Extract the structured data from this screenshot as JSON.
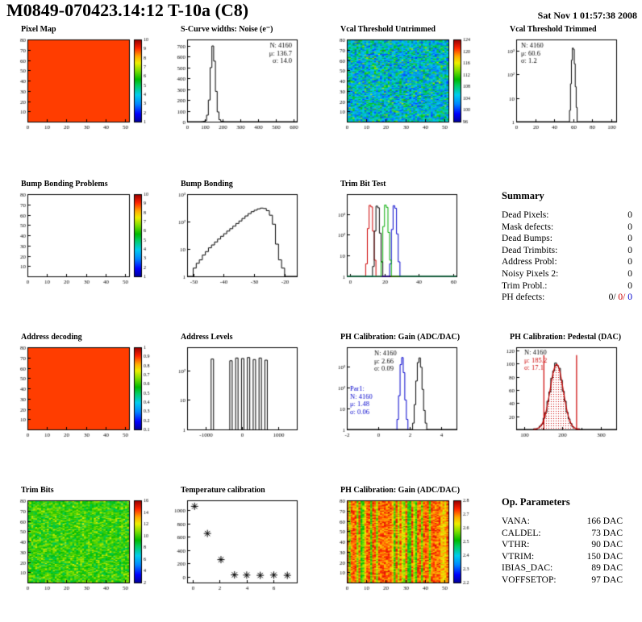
{
  "header": {
    "title": "M0849-070423.14:12 T-10a (C8)",
    "date": "Sat Nov  1 01:57:38 2008"
  },
  "colors": {
    "axis": "#000000",
    "red": "#cc0000",
    "blue": "#0000cc",
    "green": "#00aa00",
    "palette": [
      [
        0.0,
        "#000099"
      ],
      [
        0.1,
        "#0000ff"
      ],
      [
        0.22,
        "#0088ff"
      ],
      [
        0.33,
        "#00ccee"
      ],
      [
        0.44,
        "#00cc66"
      ],
      [
        0.52,
        "#00bb00"
      ],
      [
        0.62,
        "#77dd00"
      ],
      [
        0.72,
        "#eeee00"
      ],
      [
        0.8,
        "#ffaa00"
      ],
      [
        0.9,
        "#ff2200"
      ],
      [
        1.0,
        "#990000"
      ]
    ]
  },
  "chart_data": [
    {
      "id": "pixel-map",
      "type": "heatmap",
      "title": "Pixel Map",
      "x": {
        "min": 0,
        "max": 52,
        "ticks": [
          0,
          10,
          20,
          30,
          40,
          50
        ]
      },
      "y": {
        "min": 0,
        "max": 80,
        "ticks": [
          10,
          20,
          30,
          40,
          50,
          60,
          70,
          80
        ]
      },
      "noise": {
        "pattern": "flat",
        "t": 0.88
      },
      "colorbar": {
        "labels": [
          1,
          2,
          3,
          4,
          5,
          6,
          7,
          8,
          9,
          10
        ]
      }
    },
    {
      "id": "scurve-noise",
      "type": "hist",
      "title": "S-Curve widths: Noise (e⁻)",
      "x": {
        "min": 0,
        "max": 620,
        "ticks": [
          0,
          100,
          200,
          300,
          400,
          500,
          600
        ]
      },
      "y": {
        "min": 0,
        "max": 760,
        "ticks": [
          0,
          100,
          200,
          300,
          400,
          500,
          600,
          700
        ]
      },
      "series": [
        {
          "color": "#000000",
          "x0": 80,
          "dx": 10,
          "fullspan": true,
          "values": [
            1,
            3,
            10,
            60,
            200,
            500,
            700,
            560,
            280,
            90,
            18,
            3,
            1
          ]
        }
      ],
      "stats": [
        {
          "x": 160,
          "y": 16,
          "align": "right",
          "lines": [
            {
              "text": "N: 4160"
            },
            {
              "text": "μ: 136.7"
            },
            {
              "text": "σ: 14.0"
            }
          ]
        }
      ]
    },
    {
      "id": "vcal-threshold-untrimmed",
      "type": "heatmap",
      "title": "Vcal Threshold Untrimmed",
      "x": {
        "min": 0,
        "max": 52,
        "ticks": [
          0,
          10,
          20,
          30,
          40,
          50
        ]
      },
      "y": {
        "min": 0,
        "max": 80,
        "ticks": [
          10,
          20,
          30,
          40,
          50,
          60,
          70,
          80
        ]
      },
      "noise": {
        "pattern": "random",
        "range": [
          0.15,
          0.5
        ],
        "outliers": [
          0.08,
          0.5,
          0.68
        ],
        "seed": 7
      },
      "colorbar": {
        "labels": [
          96,
          100,
          104,
          108,
          112,
          116,
          120,
          124
        ]
      }
    },
    {
      "id": "vcal-threshold-trimmed",
      "type": "hist",
      "title": "Vcal Threshold Trimmed",
      "x": {
        "min": 0,
        "max": 105,
        "ticks": [
          0,
          20,
          40,
          60,
          80,
          100
        ]
      },
      "y": {
        "min": 1,
        "max": 3000,
        "log": true,
        "ticks": [
          [
            1,
            "1"
          ],
          [
            10,
            "10"
          ],
          [
            100,
            "10²"
          ],
          [
            1000,
            "10³"
          ]
        ]
      },
      "series": [
        {
          "color": "#000000",
          "x0": 55,
          "dx": 1,
          "fullspan": true,
          "values": [
            1,
            3,
            40,
            400,
            1300,
            1150,
            280,
            30,
            4,
            1
          ]
        }
      ],
      "stats": [
        {
          "x": 36,
          "y": 16,
          "lines": [
            {
              "text": "N: 4160"
            },
            {
              "text": "μ: 60.6"
            },
            {
              "text": "σ: 1.2"
            }
          ]
        }
      ]
    },
    {
      "id": "bump-bonding-problems",
      "type": "heatmap",
      "title": "Bump Bonding Problems",
      "x": {
        "min": 0,
        "max": 52,
        "ticks": [
          0,
          10,
          20,
          30,
          40,
          50
        ]
      },
      "y": {
        "min": 0,
        "max": 80,
        "ticks": [
          10,
          20,
          30,
          40,
          50,
          60,
          70,
          80
        ]
      },
      "noise": {
        "pattern": "empty"
      },
      "colorbar": {
        "labels": [
          1,
          2,
          3,
          4,
          5,
          6,
          7,
          8,
          9,
          10
        ]
      }
    },
    {
      "id": "bump-bonding",
      "type": "hist",
      "title": "Bump Bonding",
      "x": {
        "min": -52,
        "max": -16,
        "ticks": [
          -50,
          -40,
          -30,
          -20
        ]
      },
      "y": {
        "min": 1,
        "max": 1000,
        "log": true,
        "ticks": [
          [
            1,
            "1"
          ],
          [
            10,
            "10"
          ],
          [
            100,
            "10²"
          ],
          [
            1000,
            "10³"
          ]
        ]
      },
      "series": [
        {
          "color": "#000000",
          "x0": -50,
          "dx": 1,
          "fullspan": true,
          "values": [
            2,
            3,
            4,
            6,
            8,
            11,
            14,
            18,
            23,
            29,
            36,
            45,
            55,
            68,
            85,
            105,
            130,
            160,
            195,
            230,
            260,
            290,
            310,
            300,
            250,
            170,
            80,
            15,
            4,
            2
          ]
        }
      ]
    },
    {
      "id": "trim-bit-test",
      "type": "hist",
      "title": "Trim Bit Test",
      "x": {
        "min": -2,
        "max": 62,
        "ticks": [
          0,
          20,
          40,
          60
        ]
      },
      "y": {
        "min": 1,
        "max": 9000,
        "log": true,
        "ticks": [
          [
            1,
            "1"
          ],
          [
            10,
            "10"
          ],
          [
            100,
            "10²"
          ],
          [
            1000,
            "10³"
          ]
        ]
      },
      "series": [
        {
          "color": "#cc0000",
          "x0": 9,
          "dx": 1,
          "fullspan": true,
          "values": [
            4,
            200,
            2600,
            2200,
            150,
            6
          ]
        },
        {
          "color": "#000000",
          "x0": 13,
          "dx": 1,
          "fullspan": true,
          "values": [
            3,
            150,
            2400,
            2000,
            120,
            5
          ]
        },
        {
          "color": "#0000cc",
          "x0": 23,
          "dx": 1,
          "fullspan": true,
          "values": [
            4,
            180,
            2500,
            1900,
            110,
            5
          ]
        },
        {
          "color": "#00aa00",
          "x0": 18,
          "dx": 1,
          "fullspan": true,
          "values": [
            5,
            250,
            2700,
            2100,
            130,
            6
          ]
        }
      ]
    },
    {
      "id": "summary",
      "type": "table",
      "title": "Summary",
      "rows": [
        {
          "label": "Dead Pixels:",
          "value": "0"
        },
        {
          "label": "Mask defects:",
          "value": "0"
        },
        {
          "label": "Dead Bumps:",
          "value": "0"
        },
        {
          "label": "Dead Trimbits:",
          "value": "0"
        },
        {
          "label": "Address Probl:",
          "value": "0"
        },
        {
          "label": "Noisy Pixels 2:",
          "value": "0"
        },
        {
          "label": "Trim Probl.:",
          "value": "0"
        },
        {
          "label": "PH defects:",
          "value_parts": [
            {
              "text": "0/",
              "color": "#000000"
            },
            {
              "text": " 0/",
              "color": "#cc0000"
            },
            {
              "text": " 0",
              "color": "#0000cc"
            }
          ]
        }
      ]
    },
    {
      "id": "address-decoding",
      "type": "heatmap",
      "title": "Address decoding",
      "x": {
        "min": 0,
        "max": 52,
        "ticks": [
          0,
          10,
          20,
          30,
          40,
          50
        ]
      },
      "y": {
        "min": 0,
        "max": 80,
        "ticks": [
          10,
          20,
          30,
          40,
          50,
          60,
          70,
          80
        ]
      },
      "noise": {
        "pattern": "flat",
        "t": 0.88
      },
      "colorbar": {
        "labels": [
          "0.1",
          "0.2",
          "0.3",
          "0.4",
          "0.5",
          "0.6",
          "0.7",
          "0.8",
          "0.9",
          "1"
        ]
      }
    },
    {
      "id": "address-levels",
      "type": "hist",
      "title": "Address Levels",
      "x": {
        "min": -1500,
        "max": 1500,
        "ticks": [
          -1000,
          0,
          1000
        ]
      },
      "y": {
        "min": 1,
        "max": 600,
        "log": true,
        "ticks": [
          [
            1,
            "1"
          ],
          [
            10,
            "10"
          ],
          [
            100,
            "10²"
          ]
        ]
      },
      "spikes": [
        [
          -810,
          240
        ],
        [
          -300,
          210
        ],
        [
          -140,
          260
        ],
        [
          20,
          250
        ],
        [
          180,
          270
        ],
        [
          340,
          230
        ],
        [
          500,
          260
        ],
        [
          660,
          220
        ]
      ]
    },
    {
      "id": "ph-calibration-gain-hist",
      "type": "hist",
      "title": "PH Calibration: Gain (ADC/DAC)",
      "x": {
        "min": -2,
        "max": 5,
        "ticks": [
          -2,
          0,
          2,
          4
        ]
      },
      "y": {
        "min": 1,
        "max": 8000,
        "log": true,
        "ticks": [
          [
            1,
            "1"
          ],
          [
            10,
            "10"
          ],
          [
            100,
            "10²"
          ],
          [
            1000,
            "10³"
          ]
        ]
      },
      "series": [
        {
          "color": "#000000",
          "x0": 2.2,
          "dx": 0.1,
          "fullspan": true,
          "values": [
            2,
            15,
            200,
            1500,
            2500,
            900,
            80,
            8,
            2
          ]
        },
        {
          "color": "#0000cc",
          "x0": 1.2,
          "dx": 0.1,
          "values": [
            3,
            40,
            1200,
            2600,
            500,
            25,
            3
          ]
        }
      ],
      "stats": [
        {
          "x": 64,
          "y": 16,
          "lines": [
            {
              "text": "N: 4160"
            },
            {
              "text": "μ: 2.66"
            },
            {
              "text": "σ: 0.09"
            }
          ]
        },
        {
          "x": 34,
          "y": 60,
          "lines": [
            {
              "text": "Par1:",
              "color": "#0000cc"
            },
            {
              "text": "N: 4160",
              "color": "#0000cc"
            },
            {
              "text": "μ: 1.48",
              "color": "#0000cc"
            },
            {
              "text": "σ: 0.06",
              "color": "#0000cc"
            }
          ]
        }
      ]
    },
    {
      "id": "ph-calibration-pedestal",
      "type": "hist",
      "title": "PH Calibration: Pedestal (DAC)",
      "x": {
        "min": 80,
        "max": 340,
        "ticks": [
          100,
          200,
          300
        ],
        "minor": [
          150,
          250
        ]
      },
      "y": {
        "min": 0,
        "max": 125,
        "ticks": [
          20,
          40,
          60,
          80,
          100,
          120
        ]
      },
      "series": [
        {
          "color": "#000000",
          "x0": 120,
          "dx": 5,
          "fullspan": true,
          "fill": "red-dots",
          "values": [
            0,
            1,
            1,
            2,
            5,
            8,
            17,
            26,
            43,
            57,
            78,
            89,
            101,
            97,
            93,
            75,
            58,
            43,
            26,
            16,
            9,
            4,
            2,
            1,
            1,
            0
          ]
        }
      ],
      "fit": {
        "mu": 185.2,
        "sigma": 17.1,
        "amp": 99,
        "color": "#cc0000"
      },
      "vlines": {
        "x": [
          151,
          236
        ],
        "top": 113,
        "color": "#cc0000"
      },
      "stats": [
        {
          "x": 40,
          "y": 15,
          "lines": [
            {
              "text": "N: 4160"
            },
            {
              "text": "μ: 185.2",
              "color": "#cc0000"
            },
            {
              "text": "σ: 17.1",
              "color": "#cc0000"
            }
          ]
        }
      ]
    },
    {
      "id": "trim-bits-map",
      "type": "heatmap",
      "title": "Trim Bits",
      "x": {
        "min": 0,
        "max": 52,
        "ticks": [
          0,
          10,
          20,
          30,
          40,
          50
        ]
      },
      "y": {
        "min": 0,
        "max": 80,
        "ticks": [
          10,
          20,
          30,
          40,
          50,
          60,
          70,
          80
        ]
      },
      "noise": {
        "pattern": "random",
        "range": [
          0.44,
          0.66
        ],
        "outliers": [
          0.06,
          0.66,
          0.72
        ],
        "seed": 13
      },
      "colorbar": {
        "labels": [
          2,
          4,
          6,
          8,
          10,
          12,
          14,
          16
        ]
      }
    },
    {
      "id": "temperature-calibration",
      "type": "scatter",
      "title": "Temperature calibration",
      "x": {
        "min": -0.4,
        "max": 7.7,
        "ticks": [
          0,
          2,
          4,
          6
        ]
      },
      "y": {
        "min": -90,
        "max": 1150,
        "ticks": [
          0,
          200,
          400,
          600,
          800,
          1000
        ]
      },
      "points": [
        [
          0.15,
          1060
        ],
        [
          1.1,
          650
        ],
        [
          2.1,
          255
        ],
        [
          3.1,
          25
        ],
        [
          4,
          22
        ],
        [
          5,
          18
        ],
        [
          6,
          22
        ],
        [
          7,
          18
        ]
      ]
    },
    {
      "id": "ph-calibration-gain-map",
      "type": "heatmap",
      "title": "PH Calibration: Gain (ADC/DAC)",
      "x": {
        "min": 0,
        "max": 52,
        "ticks": [
          0,
          10,
          20,
          30,
          40,
          50
        ]
      },
      "y": {
        "min": 0,
        "max": 80,
        "ticks": [
          10,
          20,
          30,
          40,
          50,
          60,
          70,
          80
        ]
      },
      "noise": {
        "pattern": "streaks",
        "range": [
          0.76,
          0.94
        ],
        "seed": 21
      },
      "colorbar": {
        "labels": [
          "2.2",
          "2.3",
          "2.4",
          "2.5",
          "2.6",
          "2.7",
          "2.8"
        ]
      }
    },
    {
      "id": "op-parameters",
      "type": "table",
      "title": "Op. Parameters",
      "rows": [
        {
          "label": "VANA:",
          "value": "166 DAC"
        },
        {
          "label": "CALDEL:",
          "value": "73 DAC"
        },
        {
          "label": "VTHR:",
          "value": "90 DAC"
        },
        {
          "label": "VTRIM:",
          "value": "150 DAC"
        },
        {
          "label": "IBIAS_DAC:",
          "value": "89 DAC"
        },
        {
          "label": "VOFFSETOP:",
          "value": "97 DAC"
        }
      ]
    }
  ]
}
